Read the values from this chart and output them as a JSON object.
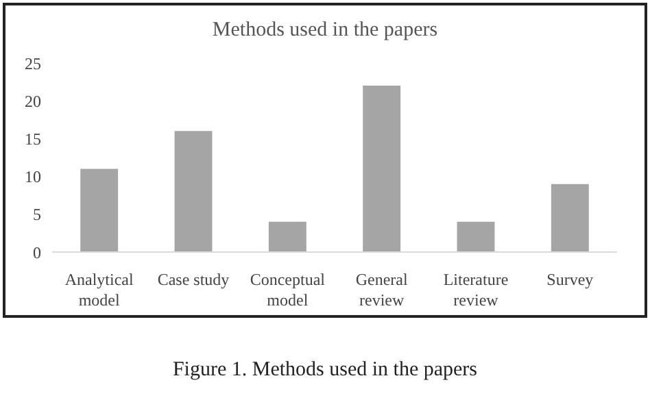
{
  "chart_data": {
    "type": "bar",
    "title": "Methods used in the papers",
    "categories": [
      "Analytical model",
      "Case study",
      "Conceptual model",
      "General review",
      "Literature review",
      "Survey"
    ],
    "values": [
      11,
      16,
      4,
      22,
      4,
      9
    ],
    "color": "#a5a5a5",
    "ylim": [
      0,
      25
    ],
    "yticks": [
      0,
      5,
      10,
      15,
      20,
      25
    ],
    "grid": false,
    "legend": false,
    "annotations": [
      "Figure 1. Methods used in the papers"
    ]
  }
}
